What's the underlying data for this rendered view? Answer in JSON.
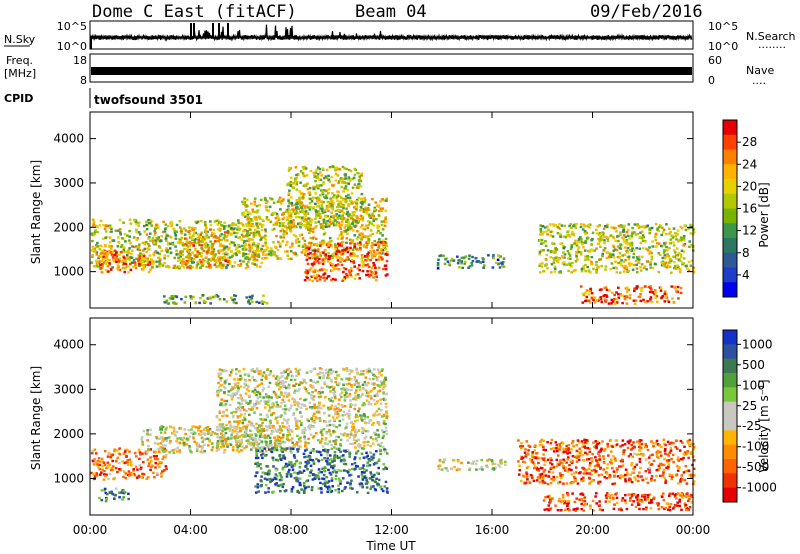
{
  "header": {
    "radar_title": "Dome C East (fitACF)",
    "beam": "Beam 04",
    "date": "09/Feb/2016"
  },
  "noise_panel": {
    "label": "N.Sky",
    "left_ticks": [
      "10^5",
      "10^0"
    ],
    "right_ticks": [
      "10^5",
      "10^0"
    ],
    "right_label": "N.Search",
    "right_dots": "........"
  },
  "freq_panel": {
    "label_line1": "Freq.",
    "label_line2": "[MHz]",
    "left_ticks": [
      "18",
      "8"
    ],
    "right_ticks": [
      "60",
      "0"
    ],
    "right_label": "Nave",
    "right_dots": "...."
  },
  "cpid_panel": {
    "label": "CPID",
    "program": "twofsound 3501"
  },
  "x_axis": {
    "label": "Time UT",
    "ticks": [
      "00:00",
      "04:00",
      "08:00",
      "12:00",
      "16:00",
      "20:00",
      "00:00"
    ]
  },
  "chart_data": [
    {
      "type": "heatmap",
      "panel": "power",
      "ylabel": "Slant Range [km]",
      "yticks": [
        1000,
        2000,
        3000,
        4000
      ],
      "ylim": [
        180,
        4600
      ],
      "xlim_hours": [
        0,
        24
      ],
      "colorbar": {
        "label": "Power [dB]",
        "ticks": [
          "28",
          "24",
          "20",
          "16",
          "12",
          "8",
          "4"
        ],
        "colors": [
          "#e60000",
          "#ff4000",
          "#ff8000",
          "#ffb300",
          "#e6d200",
          "#b4c800",
          "#78b400",
          "#3c964b",
          "#2d7864",
          "#2d5a96",
          "#1e3cc8",
          "#0000f0"
        ]
      },
      "echo_regions": [
        {
          "t": [
            0.0,
            6.8
          ],
          "r": [
            1100,
            2200
          ],
          "level": 0.55
        },
        {
          "t": [
            0.3,
            2.5
          ],
          "r": [
            1000,
            1500
          ],
          "level": 0.8
        },
        {
          "t": [
            3.5,
            5.5
          ],
          "r": [
            1100,
            2000
          ],
          "level": 0.7
        },
        {
          "t": [
            6.0,
            11.8
          ],
          "r": [
            1300,
            2700
          ],
          "level": 0.6
        },
        {
          "t": [
            7.8,
            10.8
          ],
          "r": [
            2000,
            3400
          ],
          "level": 0.55
        },
        {
          "t": [
            8.5,
            11.8
          ],
          "r": [
            800,
            1700
          ],
          "level": 0.85
        },
        {
          "t": [
            13.8,
            16.5
          ],
          "r": [
            1100,
            1400
          ],
          "level": 0.3
        },
        {
          "t": [
            17.8,
            24.0
          ],
          "r": [
            1000,
            2100
          ],
          "level": 0.55
        },
        {
          "t": [
            19.5,
            23.5
          ],
          "r": [
            300,
            700
          ],
          "level": 0.85
        },
        {
          "t": [
            2.8,
            7.0
          ],
          "r": [
            300,
            500
          ],
          "level": 0.35
        }
      ]
    },
    {
      "type": "heatmap",
      "panel": "velocity",
      "ylabel": "Slant Range [km]",
      "yticks": [
        1000,
        2000,
        3000,
        4000
      ],
      "ylim": [
        180,
        4600
      ],
      "xlim_hours": [
        0,
        24
      ],
      "colorbar": {
        "label": "Velocity [m s⁻¹]",
        "ticks": [
          "1000",
          "500",
          "100",
          "25",
          "-25",
          "-100",
          "-500",
          "-1000"
        ],
        "colors": [
          "#1432c8",
          "#2d50a0",
          "#3c7850",
          "#50a03c",
          "#78c83c",
          "#c8c8c0",
          "#c8c8c0",
          "#ffb400",
          "#ff8c00",
          "#ff6400",
          "#f03200",
          "#e60000"
        ]
      },
      "echo_regions": [
        {
          "t": [
            0.0,
            3.0
          ],
          "r": [
            1000,
            1700
          ],
          "level": 0.25
        },
        {
          "t": [
            2.0,
            8.0
          ],
          "r": [
            1600,
            2200
          ],
          "level": 0.5
        },
        {
          "t": [
            5.0,
            11.8
          ],
          "r": [
            1700,
            3500
          ],
          "level": 0.5
        },
        {
          "t": [
            6.5,
            11.8
          ],
          "r": [
            700,
            1700
          ],
          "level": 0.8
        },
        {
          "t": [
            13.8,
            16.5
          ],
          "r": [
            1200,
            1450
          ],
          "level": 0.5
        },
        {
          "t": [
            17.0,
            24.0
          ],
          "r": [
            900,
            1900
          ],
          "level": 0.2
        },
        {
          "t": [
            18.0,
            24.0
          ],
          "r": [
            300,
            700
          ],
          "level": 0.15
        },
        {
          "t": [
            0.3,
            1.5
          ],
          "r": [
            500,
            800
          ],
          "level": 0.8
        }
      ]
    }
  ]
}
